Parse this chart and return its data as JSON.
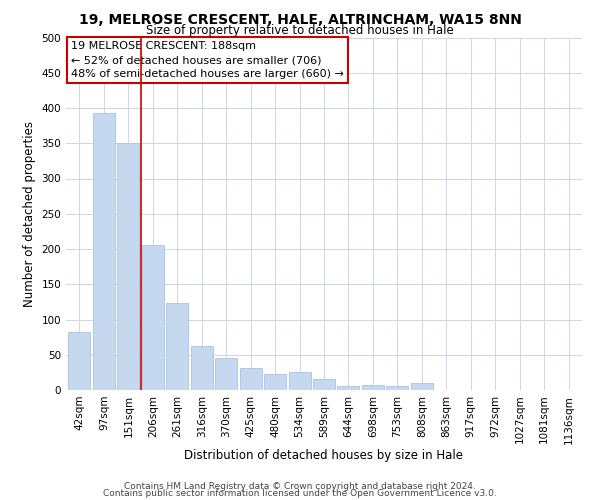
{
  "title": "19, MELROSE CRESCENT, HALE, ALTRINCHAM, WA15 8NN",
  "subtitle": "Size of property relative to detached houses in Hale",
  "xlabel": "Distribution of detached houses by size in Hale",
  "ylabel": "Number of detached properties",
  "bar_color": "#c5d8f0",
  "bar_edge_color": "#a8c4e0",
  "categories": [
    "42sqm",
    "97sqm",
    "151sqm",
    "206sqm",
    "261sqm",
    "316sqm",
    "370sqm",
    "425sqm",
    "480sqm",
    "534sqm",
    "589sqm",
    "644sqm",
    "698sqm",
    "753sqm",
    "808sqm",
    "863sqm",
    "917sqm",
    "972sqm",
    "1027sqm",
    "1081sqm",
    "1136sqm"
  ],
  "values": [
    82,
    393,
    350,
    205,
    123,
    63,
    45,
    31,
    23,
    25,
    15,
    5,
    7,
    5,
    10,
    0,
    0,
    0,
    0,
    0,
    0
  ],
  "ylim": [
    0,
    500
  ],
  "yticks": [
    0,
    50,
    100,
    150,
    200,
    250,
    300,
    350,
    400,
    450,
    500
  ],
  "property_line_x": 2.5,
  "annotation_title": "19 MELROSE CRESCENT: 188sqm",
  "annotation_line1": "← 52% of detached houses are smaller (706)",
  "annotation_line2": "48% of semi-detached houses are larger (660) →",
  "footer_line1": "Contains HM Land Registry data © Crown copyright and database right 2024.",
  "footer_line2": "Contains public sector information licensed under the Open Government Licence v3.0.",
  "background_color": "#ffffff",
  "grid_color": "#ccd6e8",
  "title_fontsize": 10,
  "subtitle_fontsize": 8.5,
  "axis_label_fontsize": 8.5,
  "tick_fontsize": 7.5,
  "footer_fontsize": 6.5
}
